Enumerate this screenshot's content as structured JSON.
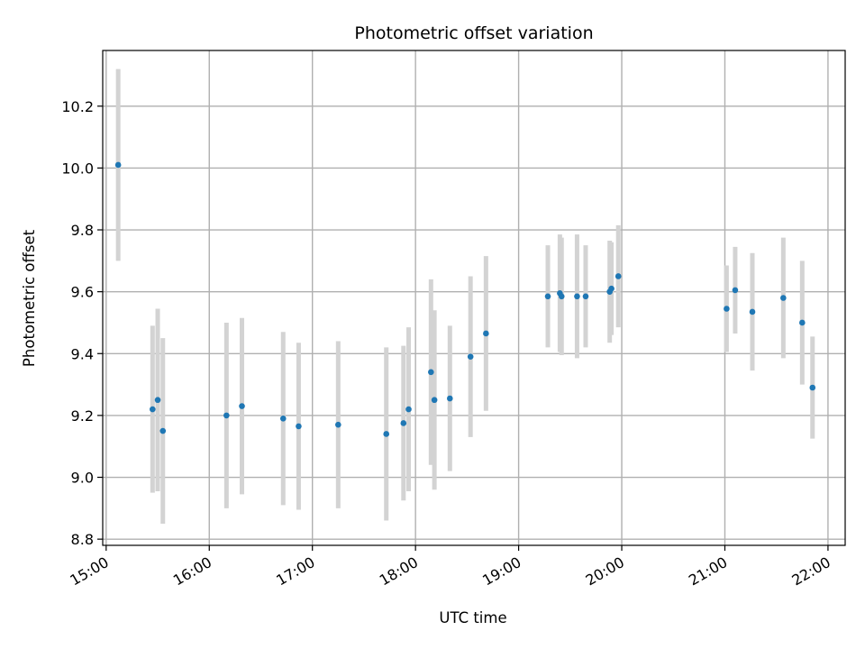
{
  "chart_data": {
    "type": "scatter",
    "title": "Photometric offset variation",
    "xlabel": "UTC time",
    "ylabel": "Photometric offset",
    "x_is_time": true,
    "xlim": [
      "14:58",
      "22:10"
    ],
    "ylim": [
      8.78,
      10.38
    ],
    "xticks": [
      "15:00",
      "16:00",
      "17:00",
      "18:00",
      "19:00",
      "20:00",
      "21:00",
      "22:00"
    ],
    "yticks": [
      8.8,
      9.0,
      9.2,
      9.4,
      9.6,
      9.8,
      10.0,
      10.2
    ],
    "ytick_labels": [
      "8.8",
      "9.0",
      "9.2",
      "9.4",
      "9.6",
      "9.8",
      "10.0",
      "10.2"
    ],
    "grid": true,
    "colors": {
      "points": "#1f77b4",
      "errorbars": "#d3d3d3",
      "grid": "#b0b0b0"
    },
    "points": [
      {
        "x": "15:07",
        "y": 10.01,
        "err": 0.31
      },
      {
        "x": "15:27",
        "y": 9.22,
        "err": 0.27
      },
      {
        "x": "15:30",
        "y": 9.25,
        "err": 0.295
      },
      {
        "x": "15:33",
        "y": 9.15,
        "err": 0.3
      },
      {
        "x": "16:10",
        "y": 9.2,
        "err": 0.3
      },
      {
        "x": "16:19",
        "y": 9.23,
        "err": 0.285
      },
      {
        "x": "16:43",
        "y": 9.19,
        "err": 0.28
      },
      {
        "x": "16:52",
        "y": 9.165,
        "err": 0.27
      },
      {
        "x": "17:15",
        "y": 9.17,
        "err": 0.27
      },
      {
        "x": "17:43",
        "y": 9.14,
        "err": 0.28
      },
      {
        "x": "17:53",
        "y": 9.175,
        "err": 0.25
      },
      {
        "x": "17:56",
        "y": 9.22,
        "err": 0.265
      },
      {
        "x": "18:09",
        "y": 9.34,
        "err": 0.3
      },
      {
        "x": "18:11",
        "y": 9.25,
        "err": 0.29
      },
      {
        "x": "18:20",
        "y": 9.255,
        "err": 0.235
      },
      {
        "x": "18:32",
        "y": 9.39,
        "err": 0.26
      },
      {
        "x": "18:41",
        "y": 9.465,
        "err": 0.25
      },
      {
        "x": "19:17",
        "y": 9.585,
        "err": 0.165
      },
      {
        "x": "19:24",
        "y": 9.595,
        "err": 0.19
      },
      {
        "x": "19:25",
        "y": 9.585,
        "err": 0.19
      },
      {
        "x": "19:34",
        "y": 9.585,
        "err": 0.2
      },
      {
        "x": "19:39",
        "y": 9.585,
        "err": 0.165
      },
      {
        "x": "19:53",
        "y": 9.6,
        "err": 0.165
      },
      {
        "x": "19:54",
        "y": 9.61,
        "err": 0.15
      },
      {
        "x": "19:58",
        "y": 9.65,
        "err": 0.165
      },
      {
        "x": "21:01",
        "y": 9.545,
        "err": 0.14
      },
      {
        "x": "21:06",
        "y": 9.605,
        "err": 0.14
      },
      {
        "x": "21:16",
        "y": 9.535,
        "err": 0.19
      },
      {
        "x": "21:34",
        "y": 9.58,
        "err": 0.195
      },
      {
        "x": "21:45",
        "y": 9.5,
        "err": 0.2
      },
      {
        "x": "21:51",
        "y": 9.29,
        "err": 0.165
      }
    ]
  }
}
